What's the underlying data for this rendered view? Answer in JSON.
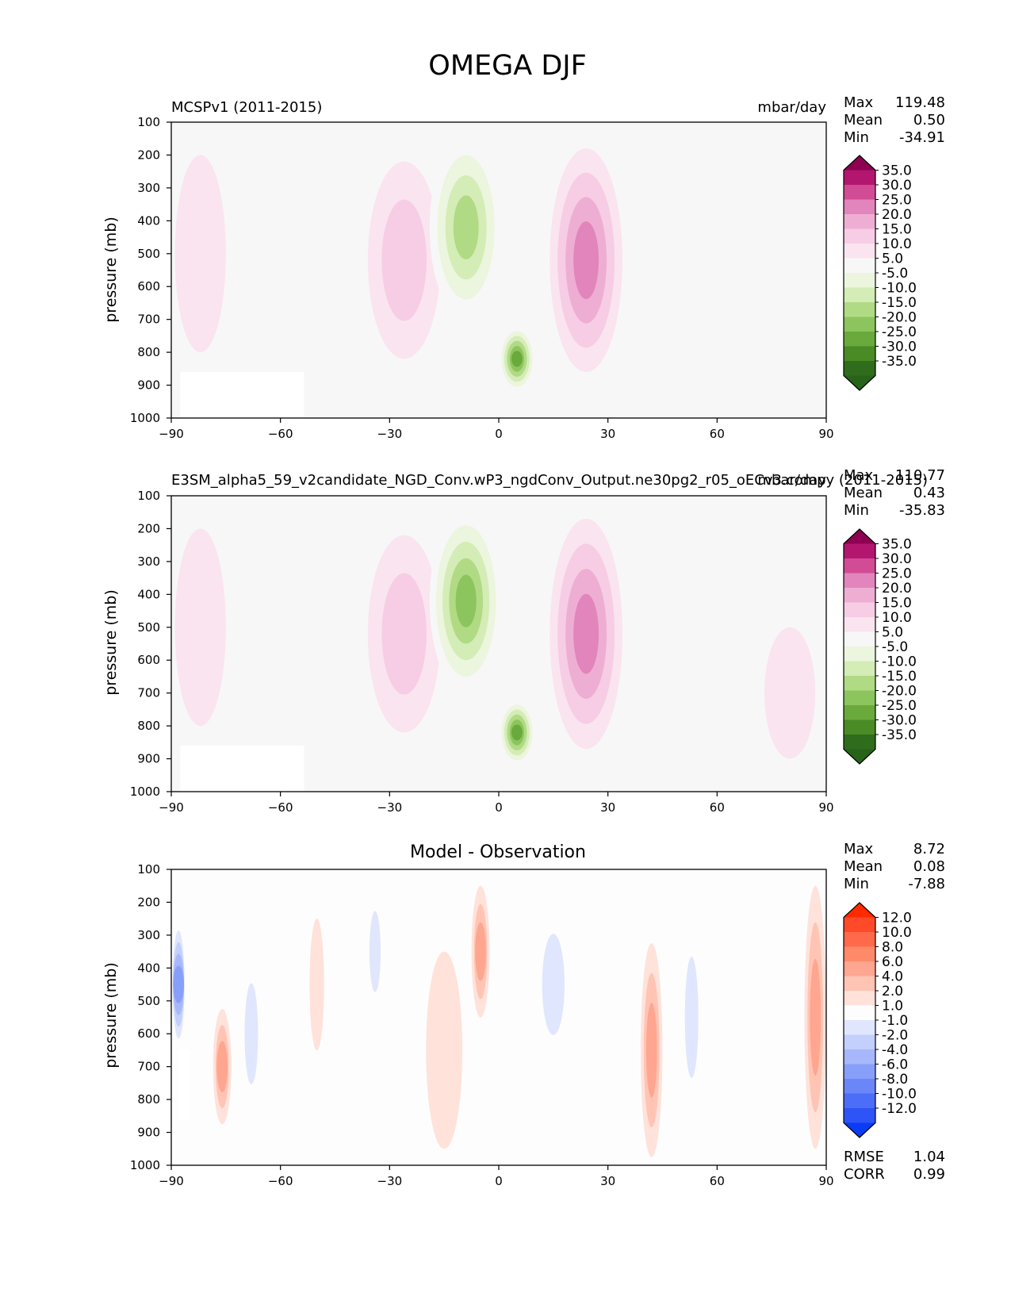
{
  "title": "OMEGA DJF",
  "chart_data": [
    {
      "type": "heatmap",
      "panel": "MCSPv1",
      "left_title": "MCSPv1 (2011-2015)",
      "center_title": "",
      "units": "mbar/day",
      "ylabel": "pressure (mb)",
      "xlim": [
        -90,
        90
      ],
      "ylim": [
        1000,
        100
      ],
      "xticks": [
        "−90",
        "−60",
        "−30",
        "0",
        "30",
        "60",
        "90"
      ],
      "yticks": [
        "100",
        "200",
        "300",
        "400",
        "500",
        "600",
        "700",
        "800",
        "900",
        "1000"
      ],
      "stats": [
        {
          "label": "Max",
          "value": "119.48"
        },
        {
          "label": "Mean",
          "value": "0.50"
        },
        {
          "label": "Min",
          "value": "-34.91"
        }
      ],
      "colorbar": {
        "labels": [
          "35.0",
          "30.0",
          "25.0",
          "20.0",
          "15.0",
          "10.0",
          "5.0",
          "-5.0",
          "-10.0",
          "-15.0",
          "-20.0",
          "-25.0",
          "-30.0",
          "-35.0"
        ],
        "colors": [
          "#8e0152",
          "#b3166f",
          "#d24b95",
          "#e185bc",
          "#eeaed3",
          "#f6cde4",
          "#fae4ef",
          "#f7f7f7",
          "#ecf5dd",
          "#d4ecb6",
          "#b0da84",
          "#8cc55d",
          "#6aa93b",
          "#4a8b26",
          "#2f6c1b",
          "#276419"
        ]
      },
      "features": [
        {
          "kind": "pos",
          "lon": 24,
          "p": 520,
          "width": 20,
          "depth": 680,
          "value": 22
        },
        {
          "kind": "pos",
          "lon": -26,
          "p": 520,
          "width": 20,
          "depth": 600,
          "value": 10
        },
        {
          "kind": "neg",
          "lon": -9,
          "p": 420,
          "width": 20,
          "depth": 560,
          "value": -24
        },
        {
          "kind": "neg",
          "lon": 5,
          "p": 820,
          "width": 10,
          "depth": 200,
          "value": -30
        },
        {
          "kind": "neg",
          "lon": -58,
          "p": 600,
          "width": 18,
          "depth": 560,
          "value": -7
        },
        {
          "kind": "pos",
          "lon": -82,
          "p": 500,
          "width": 14,
          "depth": 600,
          "value": 5
        },
        {
          "kind": "neg",
          "lon": 58,
          "p": 620,
          "width": 16,
          "depth": 500,
          "value": -6
        },
        {
          "kind": "pos",
          "lon": 78,
          "p": 750,
          "width": 14,
          "depth": 350,
          "value": 4
        }
      ]
    },
    {
      "type": "heatmap",
      "panel": "E3SM",
      "left_title": "E3SM_alpha5_59_v2candidate_NGD_Conv.wP3_ngdConv_Output.ne30pg2_r05_oECv3.compy (2011-2015)",
      "center_title": "",
      "units": "mbar/day",
      "ylabel": "pressure (mb)",
      "xlim": [
        -90,
        90
      ],
      "ylim": [
        1000,
        100
      ],
      "xticks": [
        "−90",
        "−60",
        "−30",
        "0",
        "30",
        "60",
        "90"
      ],
      "yticks": [
        "100",
        "200",
        "300",
        "400",
        "500",
        "600",
        "700",
        "800",
        "900",
        "1000"
      ],
      "stats": [
        {
          "label": "Max",
          "value": "110.77"
        },
        {
          "label": "Mean",
          "value": "0.43"
        },
        {
          "label": "Min",
          "value": "-35.83"
        }
      ],
      "colorbar": {
        "labels": [
          "35.0",
          "30.0",
          "25.0",
          "20.0",
          "15.0",
          "10.0",
          "5.0",
          "-5.0",
          "-10.0",
          "-15.0",
          "-20.0",
          "-25.0",
          "-30.0",
          "-35.0"
        ],
        "colors": [
          "#8e0152",
          "#b3166f",
          "#d24b95",
          "#e185bc",
          "#eeaed3",
          "#f6cde4",
          "#fae4ef",
          "#f7f7f7",
          "#ecf5dd",
          "#d4ecb6",
          "#b0da84",
          "#8cc55d",
          "#6aa93b",
          "#4a8b26",
          "#2f6c1b",
          "#276419"
        ]
      },
      "features": [
        {
          "kind": "pos",
          "lon": 24,
          "p": 520,
          "width": 20,
          "depth": 700,
          "value": 23
        },
        {
          "kind": "pos",
          "lon": -26,
          "p": 520,
          "width": 20,
          "depth": 600,
          "value": 11
        },
        {
          "kind": "neg",
          "lon": -9,
          "p": 420,
          "width": 20,
          "depth": 560,
          "value": -25
        },
        {
          "kind": "neg",
          "lon": 5,
          "p": 820,
          "width": 10,
          "depth": 200,
          "value": -31
        },
        {
          "kind": "neg",
          "lon": -58,
          "p": 600,
          "width": 18,
          "depth": 560,
          "value": -7
        },
        {
          "kind": "pos",
          "lon": -82,
          "p": 500,
          "width": 14,
          "depth": 600,
          "value": 5
        },
        {
          "kind": "neg",
          "lon": 58,
          "p": 650,
          "width": 16,
          "depth": 450,
          "value": -5
        },
        {
          "kind": "pos",
          "lon": 80,
          "p": 700,
          "width": 14,
          "depth": 400,
          "value": 6
        }
      ]
    },
    {
      "type": "heatmap",
      "panel": "diff",
      "left_title": "",
      "center_title": "Model - Observation",
      "units": "",
      "ylabel": "pressure (mb)",
      "xlim": [
        -90,
        90
      ],
      "ylim": [
        1000,
        100
      ],
      "xticks": [
        "−90",
        "−60",
        "−30",
        "0",
        "30",
        "60",
        "90"
      ],
      "yticks": [
        "100",
        "200",
        "300",
        "400",
        "500",
        "600",
        "700",
        "800",
        "900",
        "1000"
      ],
      "stats": [
        {
          "label": "Max",
          "value": "8.72"
        },
        {
          "label": "Mean",
          "value": "0.08"
        },
        {
          "label": "Min",
          "value": "-7.88"
        }
      ],
      "extra_stats": [
        {
          "label": "RMSE",
          "value": "1.04"
        },
        {
          "label": "CORR",
          "value": "0.99"
        }
      ],
      "colorbar": {
        "labels": [
          "12.0",
          "10.0",
          "8.0",
          "6.0",
          "4.0",
          "2.0",
          "1.0",
          "-1.0",
          "-2.0",
          "-4.0",
          "-6.0",
          "-8.0",
          "-10.0",
          "-12.0"
        ],
        "colors": [
          "#ff2a00",
          "#ff4a2a",
          "#ff6a4a",
          "#ff8a6a",
          "#ffa690",
          "#ffc4b4",
          "#ffe2da",
          "#fdfdfd",
          "#e0e6fd",
          "#c3cffc",
          "#a6b8fb",
          "#889ffa",
          "#6a86f9",
          "#4c6df8",
          "#2e54f7",
          "#0a3cf5"
        ]
      },
      "features": [
        {
          "kind": "neg",
          "lon": -88,
          "p": 450,
          "width": 4,
          "depth": 400,
          "value": -8
        },
        {
          "kind": "pos",
          "lon": -76,
          "p": 700,
          "width": 5,
          "depth": 350,
          "value": 4
        },
        {
          "kind": "neg",
          "lon": -68,
          "p": 600,
          "width": 6,
          "depth": 500,
          "value": -2
        },
        {
          "kind": "pos",
          "lon": -50,
          "p": 450,
          "width": 4,
          "depth": 400,
          "value": 1.5
        },
        {
          "kind": "neg",
          "lon": -34,
          "p": 350,
          "width": 5,
          "depth": 400,
          "value": -3
        },
        {
          "kind": "pos",
          "lon": -15,
          "p": 650,
          "width": 10,
          "depth": 600,
          "value": 1.5
        },
        {
          "kind": "pos",
          "lon": -5,
          "p": 350,
          "width": 5,
          "depth": 400,
          "value": 4
        },
        {
          "kind": "neg",
          "lon": 15,
          "p": 450,
          "width": 10,
          "depth": 500,
          "value": -2.5
        },
        {
          "kind": "pos",
          "lon": 42,
          "p": 650,
          "width": 6,
          "depth": 650,
          "value": 5
        },
        {
          "kind": "neg",
          "lon": 53,
          "p": 550,
          "width": 6,
          "depth": 600,
          "value": -3
        },
        {
          "kind": "pos",
          "lon": 87,
          "p": 550,
          "width": 6,
          "depth": 800,
          "value": 4
        }
      ]
    }
  ]
}
